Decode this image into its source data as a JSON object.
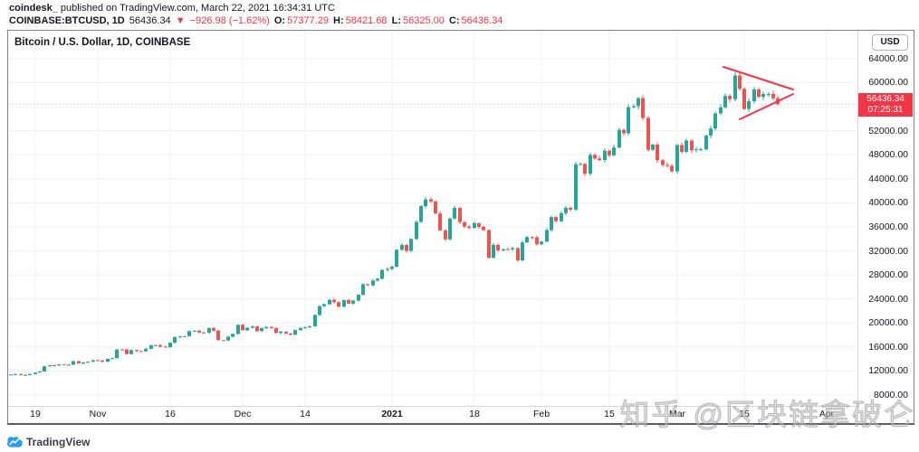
{
  "header": {
    "author": "coindesk_",
    "published": " published on TradingView.com, March 22, 2021 16:34:31 UTC",
    "quote": {
      "symbol": "COINBASE:BTCUSD, 1D",
      "last": "56436.34",
      "arrow": "▼",
      "change": "−926.98 (−1.62%)",
      "o_label": "O:",
      "o": "57377.29",
      "h_label": "H:",
      "h": "58421.68",
      "l_label": "L:",
      "l": "56325.00",
      "c_label": "C:",
      "c": "56436.34"
    }
  },
  "chart": {
    "title": "Bitcoin / U.S. Dollar, 1D, COINBASE",
    "currency": "USD",
    "tag_price": "56436.34",
    "tag_countdown": "07:25:31"
  },
  "chart_data": {
    "type": "candlestick",
    "title": "Bitcoin / U.S. Dollar, 1D, COINBASE",
    "symbol": "COINBASE:BTCUSD",
    "interval": "1D",
    "start_date": "2020-10-14",
    "end_date": "2021-03-22",
    "last": 56436.34,
    "change_points": -926.98,
    "change_percent": -1.62,
    "open": 57377.29,
    "high": 58421.68,
    "low": 56325.0,
    "close": 56436.34,
    "countdown": "07:25:31",
    "price_top": 68650,
    "price_bottom": 5900,
    "first_open": 11350,
    "closes": [
      11420,
      11505,
      11320,
      11365,
      11505,
      11755,
      11915,
      12805,
      12965,
      12930,
      13115,
      13030,
      13070,
      13650,
      13270,
      13435,
      13560,
      13795,
      13760,
      13550,
      14020,
      14145,
      15590,
      15585,
      14825,
      15480,
      15320,
      15290,
      15700,
      16280,
      16320,
      16070,
      15955,
      16715,
      17650,
      17775,
      17805,
      18650,
      18705,
      18415,
      18370,
      19160,
      18730,
      17150,
      17110,
      17720,
      18180,
      19695,
      18800,
      19205,
      19420,
      18650,
      19150,
      19345,
      19170,
      18320,
      18545,
      18250,
      18040,
      18805,
      19170,
      19275,
      19440,
      21340,
      22805,
      23125,
      23855,
      23475,
      22720,
      23820,
      23240,
      23735,
      24710,
      26435,
      26275,
      27080,
      27360,
      28840,
      29000,
      29370,
      32190,
      32990,
      32000,
      33990,
      36820,
      39450,
      40580,
      40240,
      38240,
      35410,
      33920,
      37380,
      39160,
      36790,
      36040,
      35830,
      36630,
      36000,
      35470,
      30850,
      33000,
      32100,
      32280,
      32260,
      32470,
      30430,
      33410,
      34300,
      34280,
      33110,
      33540,
      35470,
      37620,
      36940,
      38290,
      39190,
      38880,
      46430,
      46480,
      44840,
      47990,
      47380,
      47110,
      48680,
      47920,
      49200,
      52150,
      51580,
      55920,
      56100,
      57430,
      54140,
      48820,
      49700,
      47090,
      46310,
      46150,
      45230,
      49610,
      48500,
      50360,
      48750,
      48900,
      48910,
      51200,
      52380,
      54900,
      55890,
      57800,
      57250,
      61200,
      58980,
      55630,
      56900,
      58900,
      57650,
      58100,
      58120,
      57410,
      56436
    ],
    "y_grid_prices": [
      64000,
      60000,
      56000,
      52000,
      48000,
      44000,
      40000,
      36000,
      32000,
      28000,
      24000,
      20000,
      16000,
      12000,
      8000
    ],
    "y_label_prices": [
      64000,
      60000,
      52000,
      48000,
      44000,
      40000,
      36000,
      32000,
      28000,
      24000,
      20000,
      16000,
      12000,
      8000
    ],
    "x_ticks": [
      {
        "label": "19",
        "day": 5,
        "bold": false
      },
      {
        "label": "Nov",
        "day": 18,
        "bold": false
      },
      {
        "label": "16",
        "day": 33,
        "bold": false
      },
      {
        "label": "Dec",
        "day": 48,
        "bold": false
      },
      {
        "label": "14",
        "day": 61,
        "bold": false
      },
      {
        "label": "2021",
        "day": 79,
        "bold": true
      },
      {
        "label": "18",
        "day": 96,
        "bold": false
      },
      {
        "label": "Feb",
        "day": 110,
        "bold": false
      },
      {
        "label": "15",
        "day": 124,
        "bold": false
      },
      {
        "label": "Mar",
        "day": 138,
        "bold": false
      },
      {
        "label": "15",
        "day": 152,
        "bold": false
      },
      {
        "label": "Apr",
        "day": 169,
        "bold": false
      }
    ],
    "drawing": {
      "type": "pennant-triangle",
      "color": "#f23645",
      "upper_line": [
        [
          790,
          40
        ],
        [
          867,
          65
        ]
      ],
      "lower_line": [
        [
          808,
          98
        ],
        [
          867,
          70
        ]
      ]
    },
    "colors": {
      "up": "#26a69a",
      "down": "#ef5350",
      "grid": "#eef1f6",
      "tag": "#f23645",
      "price_line": "#f23645"
    },
    "legend_position": "none",
    "grid": true
  },
  "watermark": {
    "text": "知乎 @区块链拿破仑"
  },
  "footer": {
    "brand": "TradingView"
  }
}
